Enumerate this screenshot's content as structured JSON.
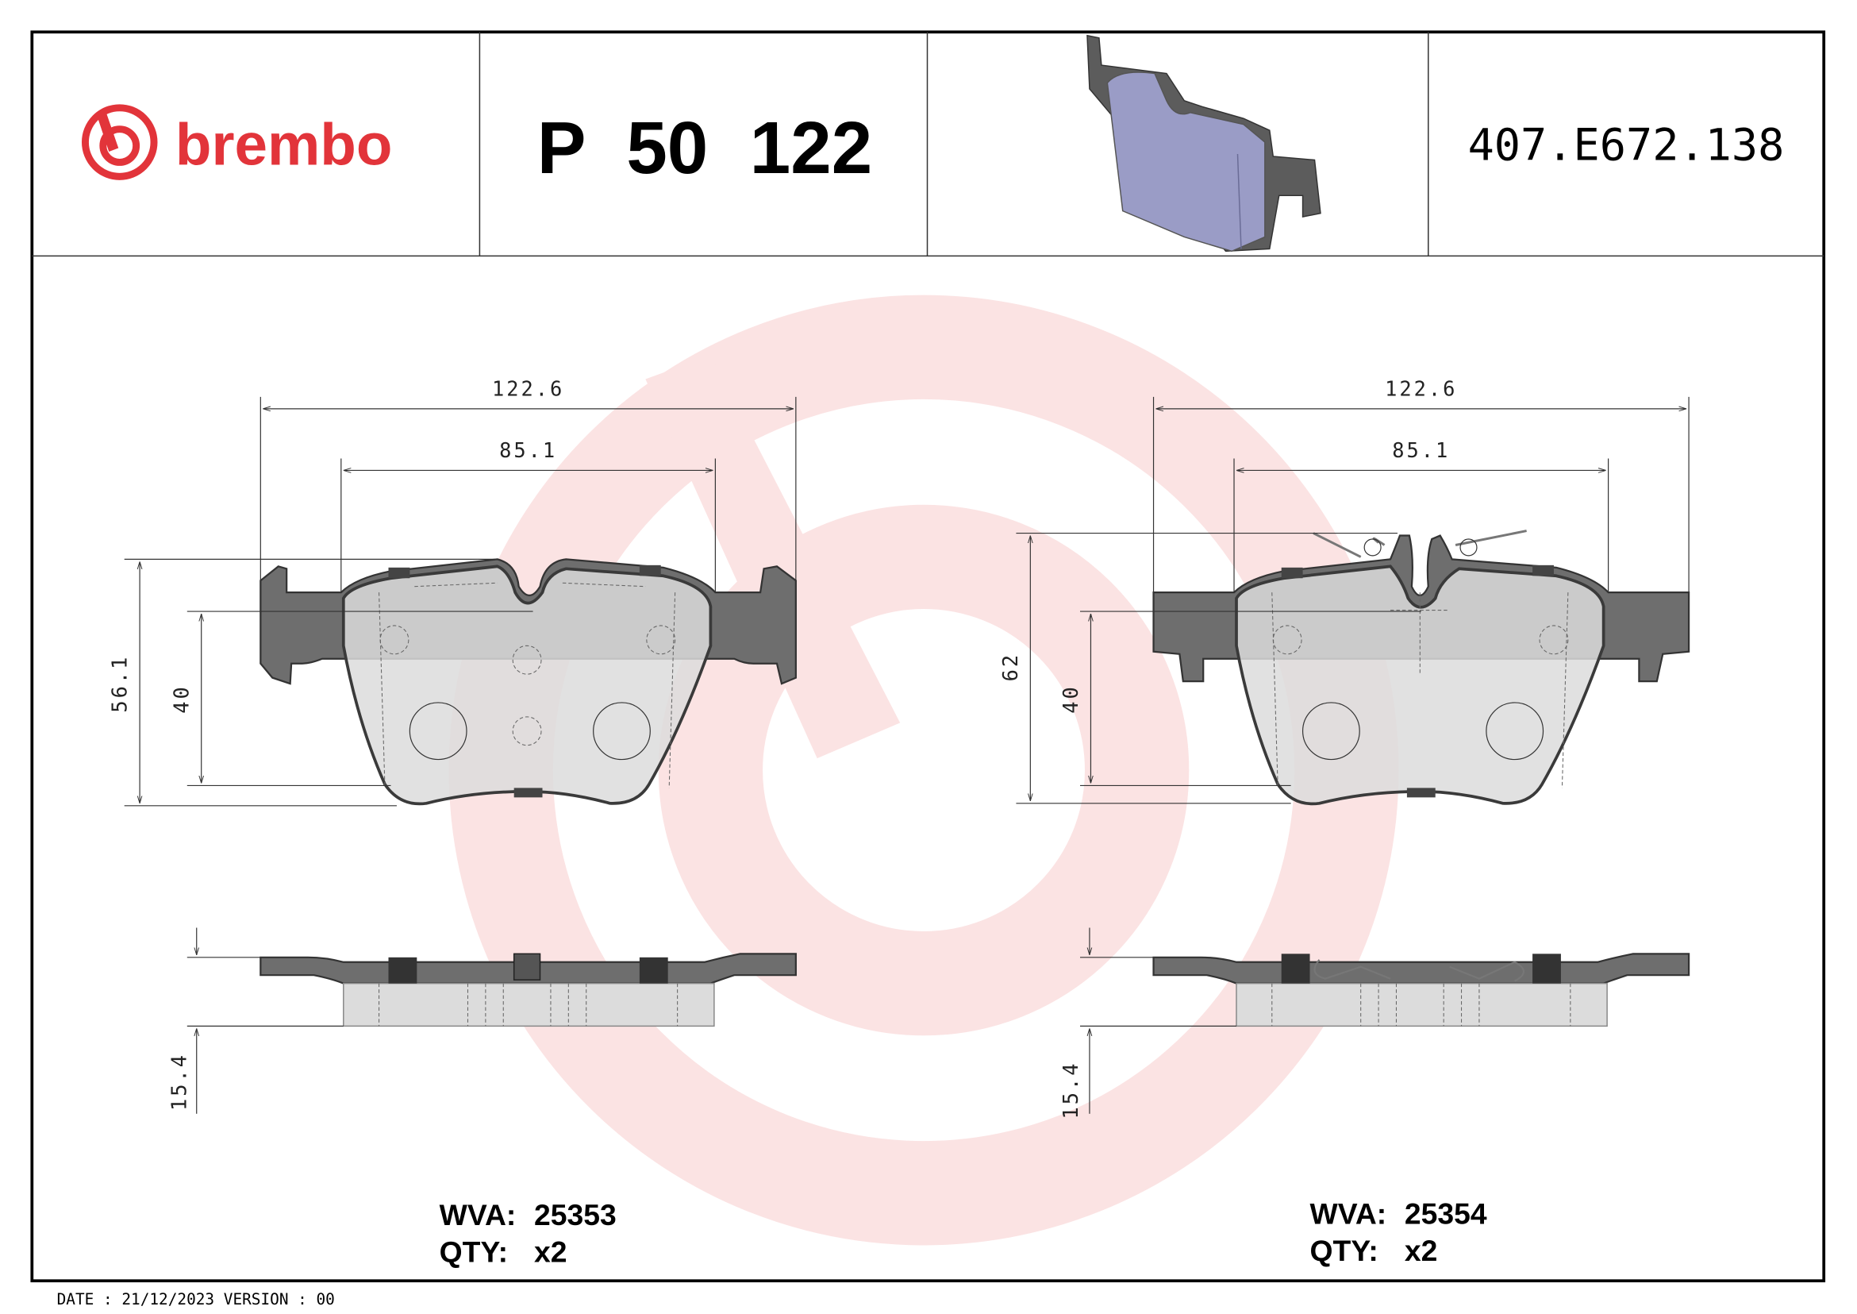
{
  "header": {
    "brand": "brembo",
    "part_number": "P 50 122",
    "reference_code": "407.E672.138"
  },
  "colors": {
    "brand_red": "#e2343a",
    "watermark": "#fbe3e3",
    "pad_preview": "#9a9cc6"
  },
  "left_pad": {
    "width_dim": "122.6",
    "inner_width_dim": "85.1",
    "height_dim": "56.1",
    "friction_height_dim": "40",
    "thickness_dim": "15.4",
    "wva_label": "WVA:",
    "wva_value": "25353",
    "qty_label": "QTY:",
    "qty_value": "x2"
  },
  "right_pad": {
    "width_dim": "122.6",
    "inner_width_dim": "85.1",
    "height_dim": "62",
    "friction_height_dim": "40",
    "thickness_dim": "15.4",
    "wva_label": "WVA:",
    "wva_value": "25354",
    "qty_label": "QTY:",
    "qty_value": "x2"
  },
  "footer": {
    "date_version": "DATE : 21/12/2023 VERSION : 00"
  }
}
